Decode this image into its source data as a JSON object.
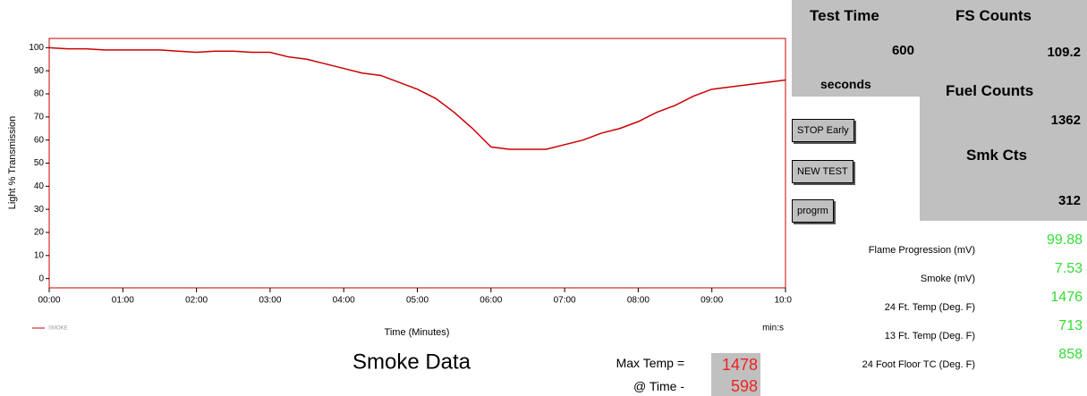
{
  "chart_data": {
    "type": "line",
    "title": "Smoke Data",
    "x_label": "Time (Minutes)",
    "x_unit": "min:s",
    "y_label": "Light % Transmission",
    "x": [
      0,
      0.25,
      0.5,
      0.75,
      1,
      1.25,
      1.5,
      1.75,
      2,
      2.25,
      2.5,
      2.75,
      3,
      3.25,
      3.5,
      3.75,
      4,
      4.25,
      4.5,
      4.75,
      5,
      5.25,
      5.5,
      5.75,
      6,
      6.25,
      6.5,
      6.75,
      7,
      7.25,
      7.5,
      7.75,
      8,
      8.25,
      8.5,
      8.75,
      9,
      9.25,
      9.5,
      9.75,
      10
    ],
    "series": [
      {
        "name": "SMOKE",
        "color": "#cc0000",
        "values": [
          100,
          99.5,
          99.5,
          99,
          99,
          99,
          99,
          98.5,
          98,
          98.5,
          98.5,
          98,
          98,
          96,
          95,
          93,
          91,
          89,
          88,
          85,
          82,
          78,
          72,
          65,
          57,
          56,
          56,
          56,
          58,
          60,
          63,
          65,
          68,
          72,
          75,
          79,
          82,
          83,
          84,
          85,
          86
        ]
      }
    ],
    "xlim": [
      0,
      10
    ],
    "xticks": [
      {
        "value": 0,
        "label": "00:00"
      },
      {
        "value": 1,
        "label": "01:00"
      },
      {
        "value": 2,
        "label": "02:00"
      },
      {
        "value": 3,
        "label": "03:00"
      },
      {
        "value": 4,
        "label": "04:00"
      },
      {
        "value": 5,
        "label": "05:00"
      },
      {
        "value": 6,
        "label": "06:00"
      },
      {
        "value": 7,
        "label": "07:00"
      },
      {
        "value": 8,
        "label": "08:00"
      },
      {
        "value": 9,
        "label": "09:00"
      },
      {
        "value": 10,
        "label": "10:00"
      }
    ],
    "ylim": [
      -4,
      104
    ],
    "yticks": [
      0,
      10,
      20,
      30,
      40,
      50,
      60,
      70,
      80,
      90,
      100
    ]
  },
  "panel": {
    "test_time": {
      "label": "Test Time",
      "value": 600,
      "unit": "seconds"
    },
    "fs_counts": {
      "label": "FS Counts",
      "value": 109.2
    },
    "fuel_counts": {
      "label": "Fuel Counts",
      "value": 1362
    },
    "smk_cts": {
      "label": "Smk Cts",
      "value": 312
    }
  },
  "buttons": [
    "STOP Early",
    "NEW TEST",
    "progrm"
  ],
  "readings": [
    {
      "label": "Flame Progression (mV)",
      "value": 99.88
    },
    {
      "label": "Smoke (mV)",
      "value": 7.53
    },
    {
      "label": "24 Ft. Temp (Deg. F)",
      "value": 1476
    },
    {
      "label": "13 Ft. Temp (Deg. F)",
      "value": 713
    },
    {
      "label": "24 Foot Floor TC (Deg. F)",
      "value": 858
    }
  ],
  "max_temp": {
    "label": "Max Temp =",
    "value": 1478,
    "time_label": "@ Time -",
    "time": 598
  }
}
